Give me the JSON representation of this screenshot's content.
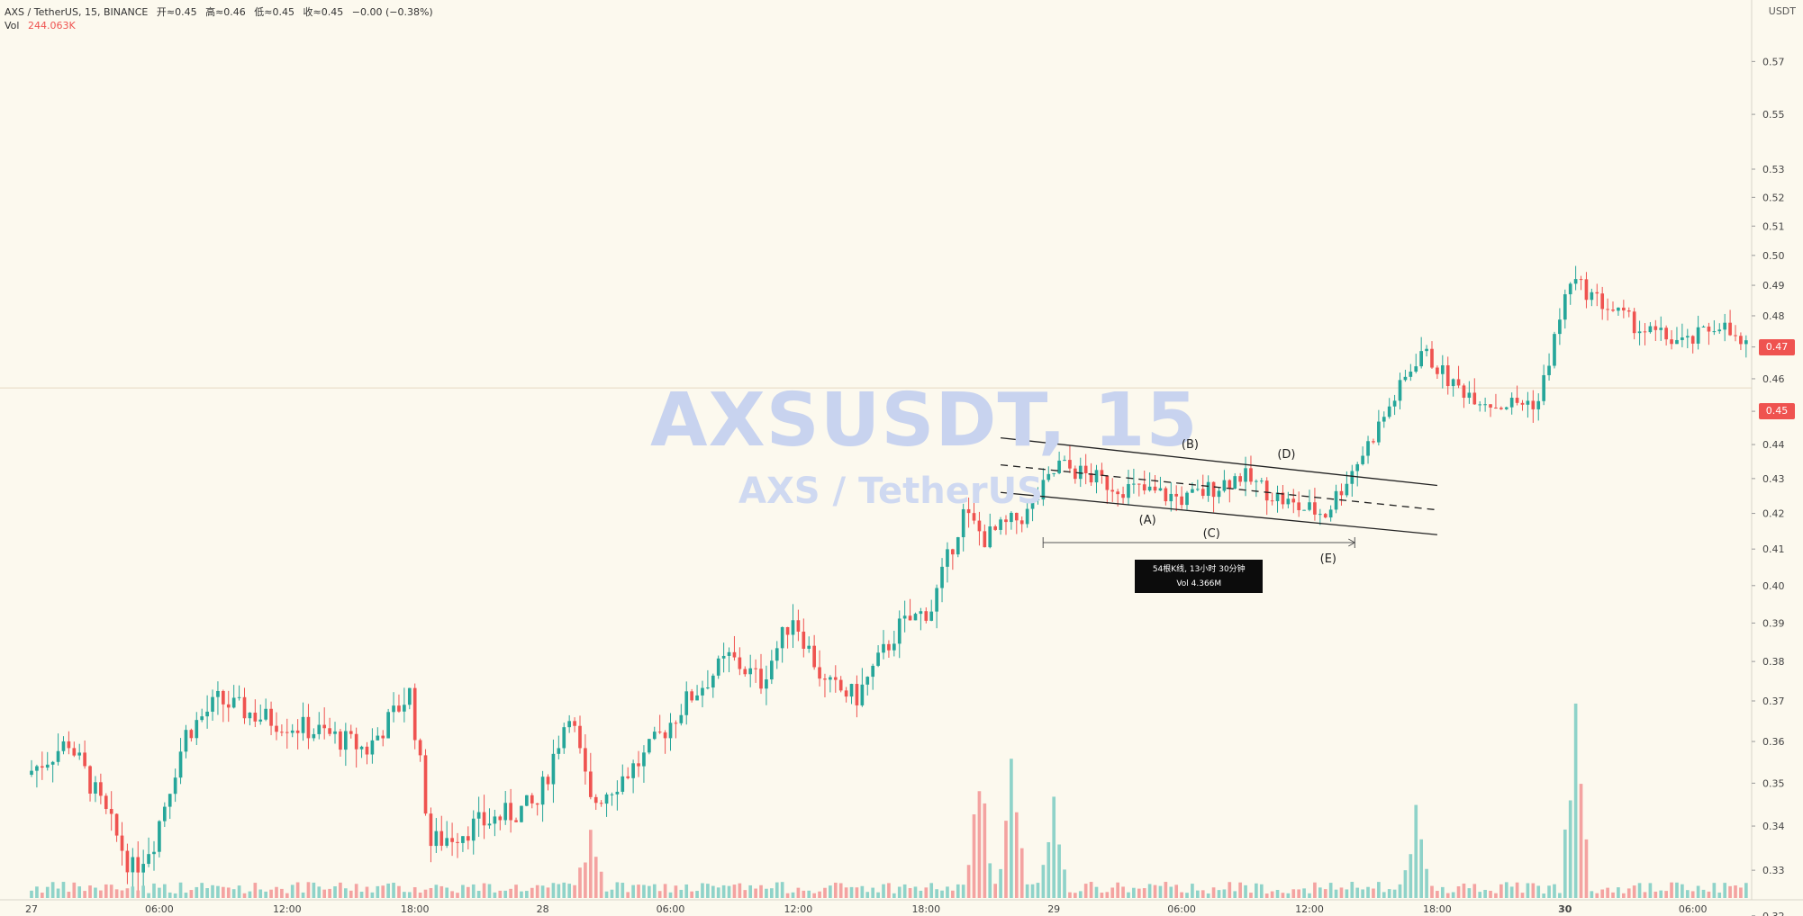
{
  "legend": {
    "symbol": "AXS / TetherUS, 15, BINANCE",
    "open": "开≈0.45",
    "high": "高≈0.46",
    "low": "低≈0.45",
    "close": "收≈0.45",
    "change": "−0.00 (−0.38%)",
    "vol_label": "Vol",
    "vol_value": "244.063K"
  },
  "watermark": {
    "line1": "AXSUSDT, 15",
    "line2": "AXS / TetherUS"
  },
  "price_axis": {
    "unit": "USDT",
    "current_price": "0.47",
    "crosshair_price": "0.45"
  },
  "range_info": {
    "line1": "54根K线, 13小时 30分钟",
    "line2": "Vol 4.366M"
  },
  "wave_labels": [
    "(A)",
    "(B)",
    "(C)",
    "(D)",
    "(E)"
  ],
  "colors": {
    "up": "#26a69a",
    "down": "#ef5350",
    "up_volume": "#8fd3c9",
    "down_volume": "#f4a3a1",
    "background": "#fcf9ee"
  },
  "chart_data": {
    "type": "candlestick",
    "y_scale": "log",
    "ylim": [
      0.315,
      0.585
    ],
    "y_ticks": [
      "0.57",
      "0.55",
      "0.53",
      "0.52",
      "0.51",
      "0.50",
      "0.49",
      "0.48",
      "0.47",
      "0.46",
      "0.45",
      "0.44",
      "0.43",
      "0.42",
      "0.41",
      "0.40",
      "0.39",
      "0.38",
      "0.37",
      "0.36",
      "0.35",
      "0.34",
      "0.33",
      "0.32"
    ],
    "x_ticks": [
      "27",
      "06:00",
      "12:00",
      "18:00",
      "28",
      "06:00",
      "12:00",
      "18:00",
      "29",
      "06:00",
      "12:00",
      "18:00",
      "30",
      "06:00"
    ],
    "price_path": [
      [
        "27 00:00",
        0.352
      ],
      [
        "27 02:00",
        0.36
      ],
      [
        "27 04:00",
        0.34
      ],
      [
        "27 05:00",
        0.33
      ],
      [
        "27 06:00",
        0.337
      ],
      [
        "27 07:30",
        0.362
      ],
      [
        "27 09:00",
        0.37
      ],
      [
        "27 11:00",
        0.366
      ],
      [
        "27 14:00",
        0.362
      ],
      [
        "27 16:00",
        0.358
      ],
      [
        "27 18:00",
        0.372
      ],
      [
        "27 19:00",
        0.336
      ],
      [
        "27 21:00",
        0.34
      ],
      [
        "28 00:00",
        0.345
      ],
      [
        "28 01:30",
        0.368
      ],
      [
        "28 02:30",
        0.345
      ],
      [
        "28 05:00",
        0.356
      ],
      [
        "28 07:00",
        0.37
      ],
      [
        "28 09:00",
        0.381
      ],
      [
        "28 10:30",
        0.375
      ],
      [
        "28 12:00",
        0.392
      ],
      [
        "28 13:30",
        0.374
      ],
      [
        "28 15:00",
        0.371
      ],
      [
        "28 17:00",
        0.389
      ],
      [
        "28 18:30",
        0.394
      ],
      [
        "28 20:00",
        0.42
      ],
      [
        "28 21:00",
        0.413
      ],
      [
        "28 23:00",
        0.42
      ],
      [
        "29 00:30",
        0.434
      ],
      [
        "29 03:00",
        0.428
      ],
      [
        "29 06:30",
        0.424
      ],
      [
        "29 09:00",
        0.431
      ],
      [
        "29 11:30",
        0.422
      ],
      [
        "29 13:00",
        0.42
      ],
      [
        "29 15:00",
        0.44
      ],
      [
        "29 16:30",
        0.457
      ],
      [
        "29 17:30",
        0.469
      ],
      [
        "29 19:00",
        0.458
      ],
      [
        "29 21:00",
        0.452
      ],
      [
        "29 23:00",
        0.453
      ],
      [
        "30 00:30",
        0.492
      ],
      [
        "30 02:00",
        0.484
      ],
      [
        "30 04:00",
        0.475
      ],
      [
        "30 06:00",
        0.471
      ],
      [
        "30 07:30",
        0.478
      ],
      [
        "30 08:30",
        0.47
      ]
    ],
    "volume_spikes": [
      [
        "28 02:15",
        0.28
      ],
      [
        "28 20:30",
        0.46
      ],
      [
        "28 22:00",
        0.43
      ],
      [
        "29 00:00",
        0.38
      ],
      [
        "29 17:00",
        0.29
      ],
      [
        "30 00:30",
        0.62
      ]
    ],
    "range_measure": {
      "from": "29 00:00",
      "to": "29 14:00",
      "bars": 54,
      "duration": "13小时 30分钟",
      "volume": "4.366M"
    },
    "channel": {
      "upper": [
        [
          "28 21:30",
          0.442
        ],
        [
          "29 18:00",
          0.428
        ]
      ],
      "middle": [
        [
          "28 21:30",
          0.434
        ],
        [
          "29 18:00",
          0.421
        ]
      ],
      "lower": [
        [
          "28 21:30",
          0.426
        ],
        [
          "29 18:00",
          0.414
        ]
      ]
    },
    "waves": [
      {
        "label": "(A)",
        "time": "29 04:30",
        "price": 0.421
      },
      {
        "label": "(B)",
        "time": "29 06:30",
        "price": 0.436
      },
      {
        "label": "(C)",
        "time": "29 07:30",
        "price": 0.417
      },
      {
        "label": "(D)",
        "time": "29 11:00",
        "price": 0.433
      },
      {
        "label": "(E)",
        "time": "29 13:00",
        "price": 0.41
      }
    ]
  }
}
